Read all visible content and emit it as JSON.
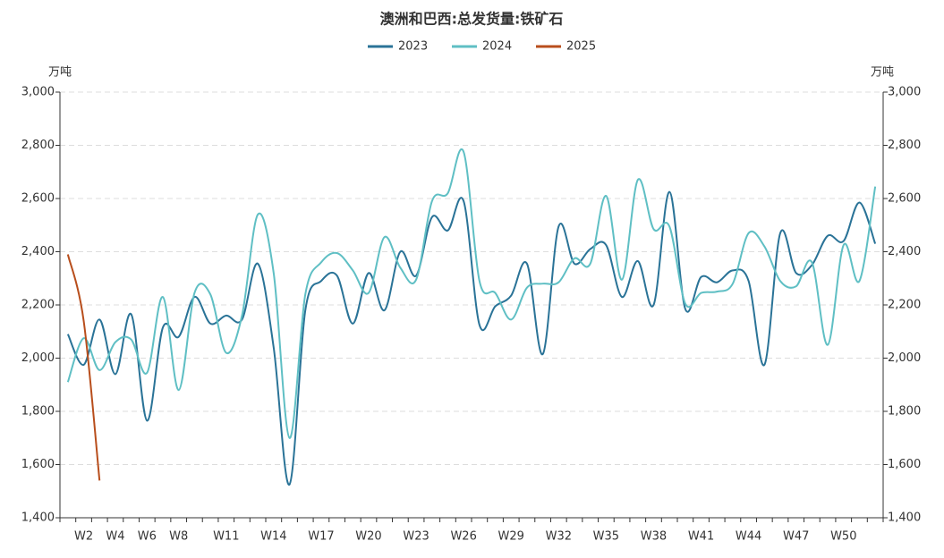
{
  "chart_data": {
    "type": "line",
    "title": "澳洲和巴西:总发货量:铁矿石",
    "y_label": "万吨",
    "y2_label": "万吨",
    "categories": [
      null,
      "W2",
      null,
      "W4",
      null,
      "W6",
      null,
      "W8",
      null,
      null,
      "W11",
      null,
      null,
      "W14",
      null,
      null,
      "W17",
      null,
      null,
      "W20",
      null,
      null,
      "W23",
      null,
      null,
      "W26",
      null,
      null,
      "W29",
      null,
      null,
      "W32",
      null,
      null,
      "W35",
      null,
      null,
      "W38",
      null,
      null,
      "W41",
      null,
      null,
      "W44",
      null,
      null,
      "W47",
      null,
      null,
      "W50",
      null,
      null
    ],
    "series": [
      {
        "name": "2023",
        "color": "#2a7397",
        "values": [
          2090,
          1975,
          2145,
          1940,
          2165,
          1765,
          2115,
          2080,
          2230,
          2130,
          2160,
          2145,
          2355,
          2040,
          1525,
          2180,
          2290,
          2310,
          2130,
          2320,
          2180,
          2400,
          2310,
          2530,
          2480,
          2590,
          2125,
          2195,
          2235,
          2355,
          2015,
          2495,
          2355,
          2410,
          2425,
          2230,
          2365,
          2200,
          2625,
          2185,
          2305,
          2285,
          2330,
          2290,
          1975,
          2470,
          2320,
          2350,
          2460,
          2440,
          2585,
          2430
        ]
      },
      {
        "name": "2024",
        "color": "#5fbfc4",
        "values": [
          1910,
          2075,
          1955,
          2060,
          2070,
          1945,
          2230,
          1880,
          2245,
          2240,
          2020,
          2160,
          2540,
          2320,
          1700,
          2240,
          2360,
          2395,
          2330,
          2245,
          2455,
          2340,
          2295,
          2590,
          2620,
          2775,
          2290,
          2245,
          2145,
          2265,
          2280,
          2285,
          2375,
          2355,
          2610,
          2295,
          2670,
          2485,
          2495,
          2205,
          2245,
          2250,
          2280,
          2470,
          2420,
          2290,
          2270,
          2360,
          2050,
          2425,
          2290,
          2645
        ]
      },
      {
        "name": "2025",
        "color": "#b84e1c",
        "values": [
          2390,
          2140,
          1540,
          null,
          null,
          null,
          null,
          null,
          null,
          null,
          null,
          null,
          null,
          null,
          null,
          null,
          null,
          null,
          null,
          null,
          null,
          null,
          null,
          null,
          null,
          null,
          null,
          null,
          null,
          null,
          null,
          null,
          null,
          null,
          null,
          null,
          null,
          null,
          null,
          null,
          null,
          null,
          null,
          null,
          null,
          null,
          null,
          null,
          null,
          null,
          null,
          null
        ]
      }
    ],
    "ylim": [
      1400,
      3000
    ],
    "yticks": [
      {
        "value": 1400,
        "label": "1,400"
      },
      {
        "value": 1600,
        "label": "1,600"
      },
      {
        "value": 1800,
        "label": "1,800"
      },
      {
        "value": 2000,
        "label": "2,000"
      },
      {
        "value": 2200,
        "label": "2,200"
      },
      {
        "value": 2400,
        "label": "2,400"
      },
      {
        "value": 2600,
        "label": "2,600"
      },
      {
        "value": 2800,
        "label": "2,800"
      },
      {
        "value": 3000,
        "label": "3,000"
      }
    ],
    "y2lim": [
      1400,
      3000
    ],
    "y2ticks": [
      {
        "value": 1400,
        "label": "1,400"
      },
      {
        "value": 1600,
        "label": "1,600"
      },
      {
        "value": 1800,
        "label": "1,800"
      },
      {
        "value": 2000,
        "label": "2,000"
      },
      {
        "value": 2200,
        "label": "2,200"
      },
      {
        "value": 2400,
        "label": "2,400"
      },
      {
        "value": 2600,
        "label": "2,600"
      },
      {
        "value": 2800,
        "label": "2,800"
      },
      {
        "value": 3000,
        "label": "3,000"
      }
    ],
    "grid": true,
    "legend": "top"
  }
}
